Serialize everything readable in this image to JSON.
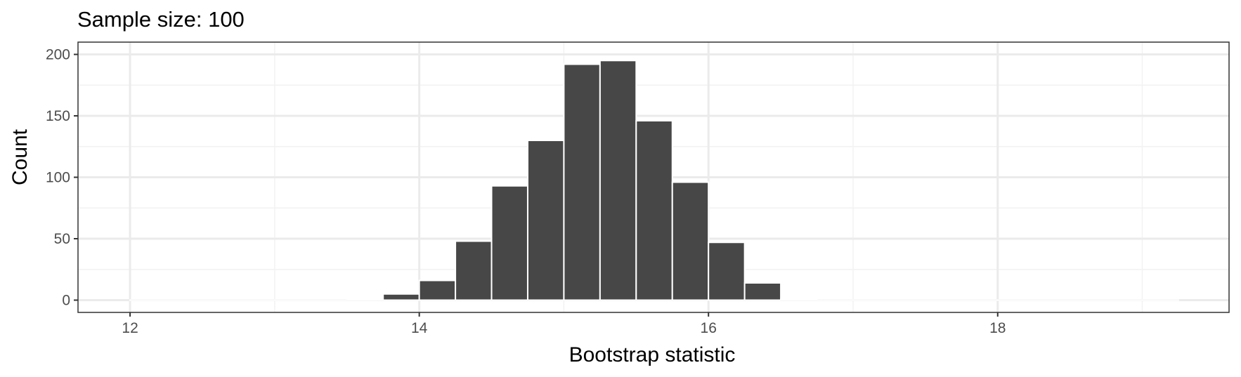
{
  "chart_data": {
    "type": "bar",
    "subtype": "histogram",
    "title": "Sample size: 100",
    "xlabel": "Bootstrap statistic",
    "ylabel": "Count",
    "xlim": [
      11.64,
      19.6
    ],
    "ylim": [
      -10,
      210
    ],
    "x_ticks": [
      12,
      14,
      16,
      18
    ],
    "x_tick_labels": [
      "12",
      "14",
      "16",
      "18"
    ],
    "x_minor_gridlines": [
      13,
      15,
      17,
      19
    ],
    "y_ticks": [
      0,
      50,
      100,
      150,
      200
    ],
    "y_tick_labels": [
      "0",
      "50",
      "100",
      "150",
      "200"
    ],
    "y_minor_gridlines": [
      25,
      75,
      125,
      175
    ],
    "grid": true,
    "legend": null,
    "bin_width": 0.25,
    "bins": [
      {
        "x0": 12.0,
        "x1": 12.25,
        "count": 0
      },
      {
        "x0": 12.25,
        "x1": 12.5,
        "count": 0
      },
      {
        "x0": 12.5,
        "x1": 12.75,
        "count": 0
      },
      {
        "x0": 12.75,
        "x1": 13.0,
        "count": 0
      },
      {
        "x0": 13.0,
        "x1": 13.25,
        "count": 0
      },
      {
        "x0": 13.25,
        "x1": 13.5,
        "count": 0
      },
      {
        "x0": 13.5,
        "x1": 13.75,
        "count": 1
      },
      {
        "x0": 13.75,
        "x1": 14.0,
        "count": 5
      },
      {
        "x0": 14.0,
        "x1": 14.25,
        "count": 16
      },
      {
        "x0": 14.25,
        "x1": 14.5,
        "count": 48
      },
      {
        "x0": 14.5,
        "x1": 14.75,
        "count": 93
      },
      {
        "x0": 14.75,
        "x1": 15.0,
        "count": 130
      },
      {
        "x0": 15.0,
        "x1": 15.25,
        "count": 192
      },
      {
        "x0": 15.25,
        "x1": 15.5,
        "count": 195
      },
      {
        "x0": 15.5,
        "x1": 15.75,
        "count": 146
      },
      {
        "x0": 15.75,
        "x1": 16.0,
        "count": 96
      },
      {
        "x0": 16.0,
        "x1": 16.25,
        "count": 47
      },
      {
        "x0": 16.25,
        "x1": 16.5,
        "count": 14
      },
      {
        "x0": 16.5,
        "x1": 16.75,
        "count": 1
      },
      {
        "x0": 16.75,
        "x1": 17.0,
        "count": 0
      },
      {
        "x0": 17.0,
        "x1": 17.25,
        "count": 0
      },
      {
        "x0": 17.25,
        "x1": 17.5,
        "count": 0
      },
      {
        "x0": 17.5,
        "x1": 17.75,
        "count": 0
      },
      {
        "x0": 17.75,
        "x1": 18.0,
        "count": 0
      },
      {
        "x0": 18.0,
        "x1": 18.25,
        "count": 0
      },
      {
        "x0": 18.25,
        "x1": 18.5,
        "count": 0
      },
      {
        "x0": 18.5,
        "x1": 18.75,
        "count": 0
      },
      {
        "x0": 18.75,
        "x1": 19.0,
        "count": 0
      },
      {
        "x0": 19.0,
        "x1": 19.25,
        "count": 0
      }
    ],
    "colors": {
      "bar_fill": "#474747",
      "bar_outline": "#ffffff",
      "panel_border": "#333333",
      "major_grid": "#ebebeb",
      "minor_grid": "#f2f2f2",
      "background": "#ffffff"
    }
  }
}
